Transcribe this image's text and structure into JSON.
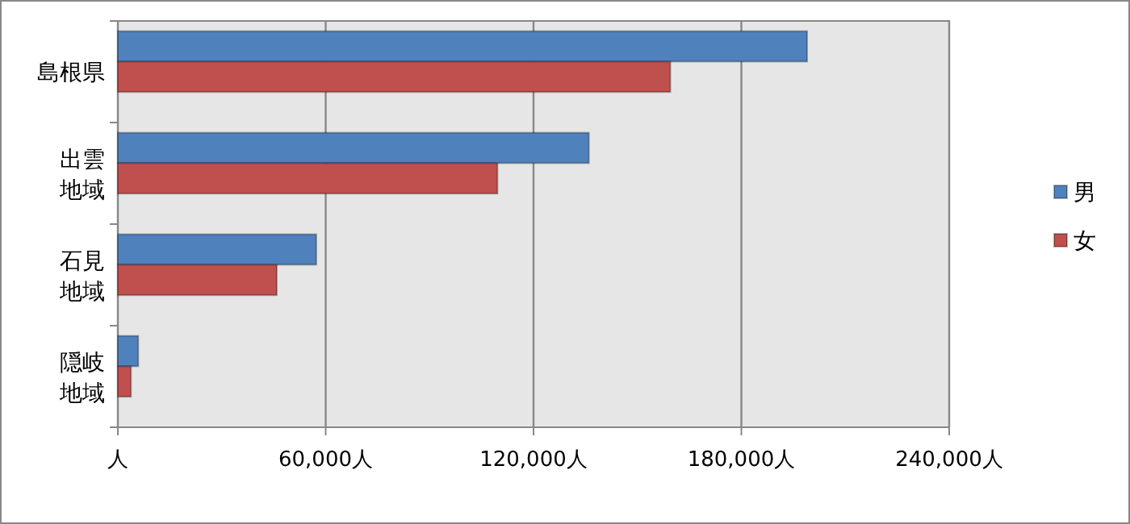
{
  "chart_data": {
    "type": "bar",
    "orientation": "horizontal",
    "categories": [
      "島根県",
      "出雲地域",
      "石見地域",
      "隠岐地域"
    ],
    "series": [
      {
        "name": "男",
        "color": "#4f81bd",
        "values": [
          199000,
          136000,
          57300,
          5900
        ]
      },
      {
        "name": "女",
        "color": "#c0504d",
        "values": [
          159500,
          109600,
          45900,
          3800
        ]
      }
    ],
    "xlim": [
      0,
      240000
    ],
    "xticks": [
      {
        "value": 0,
        "label": "人"
      },
      {
        "value": 60000,
        "label": "60,000人"
      },
      {
        "value": 120000,
        "label": "120,000人"
      },
      {
        "value": 180000,
        "label": "180,000人"
      },
      {
        "value": 240000,
        "label": "240,000人"
      }
    ],
    "grid": "x",
    "legend": "right"
  }
}
